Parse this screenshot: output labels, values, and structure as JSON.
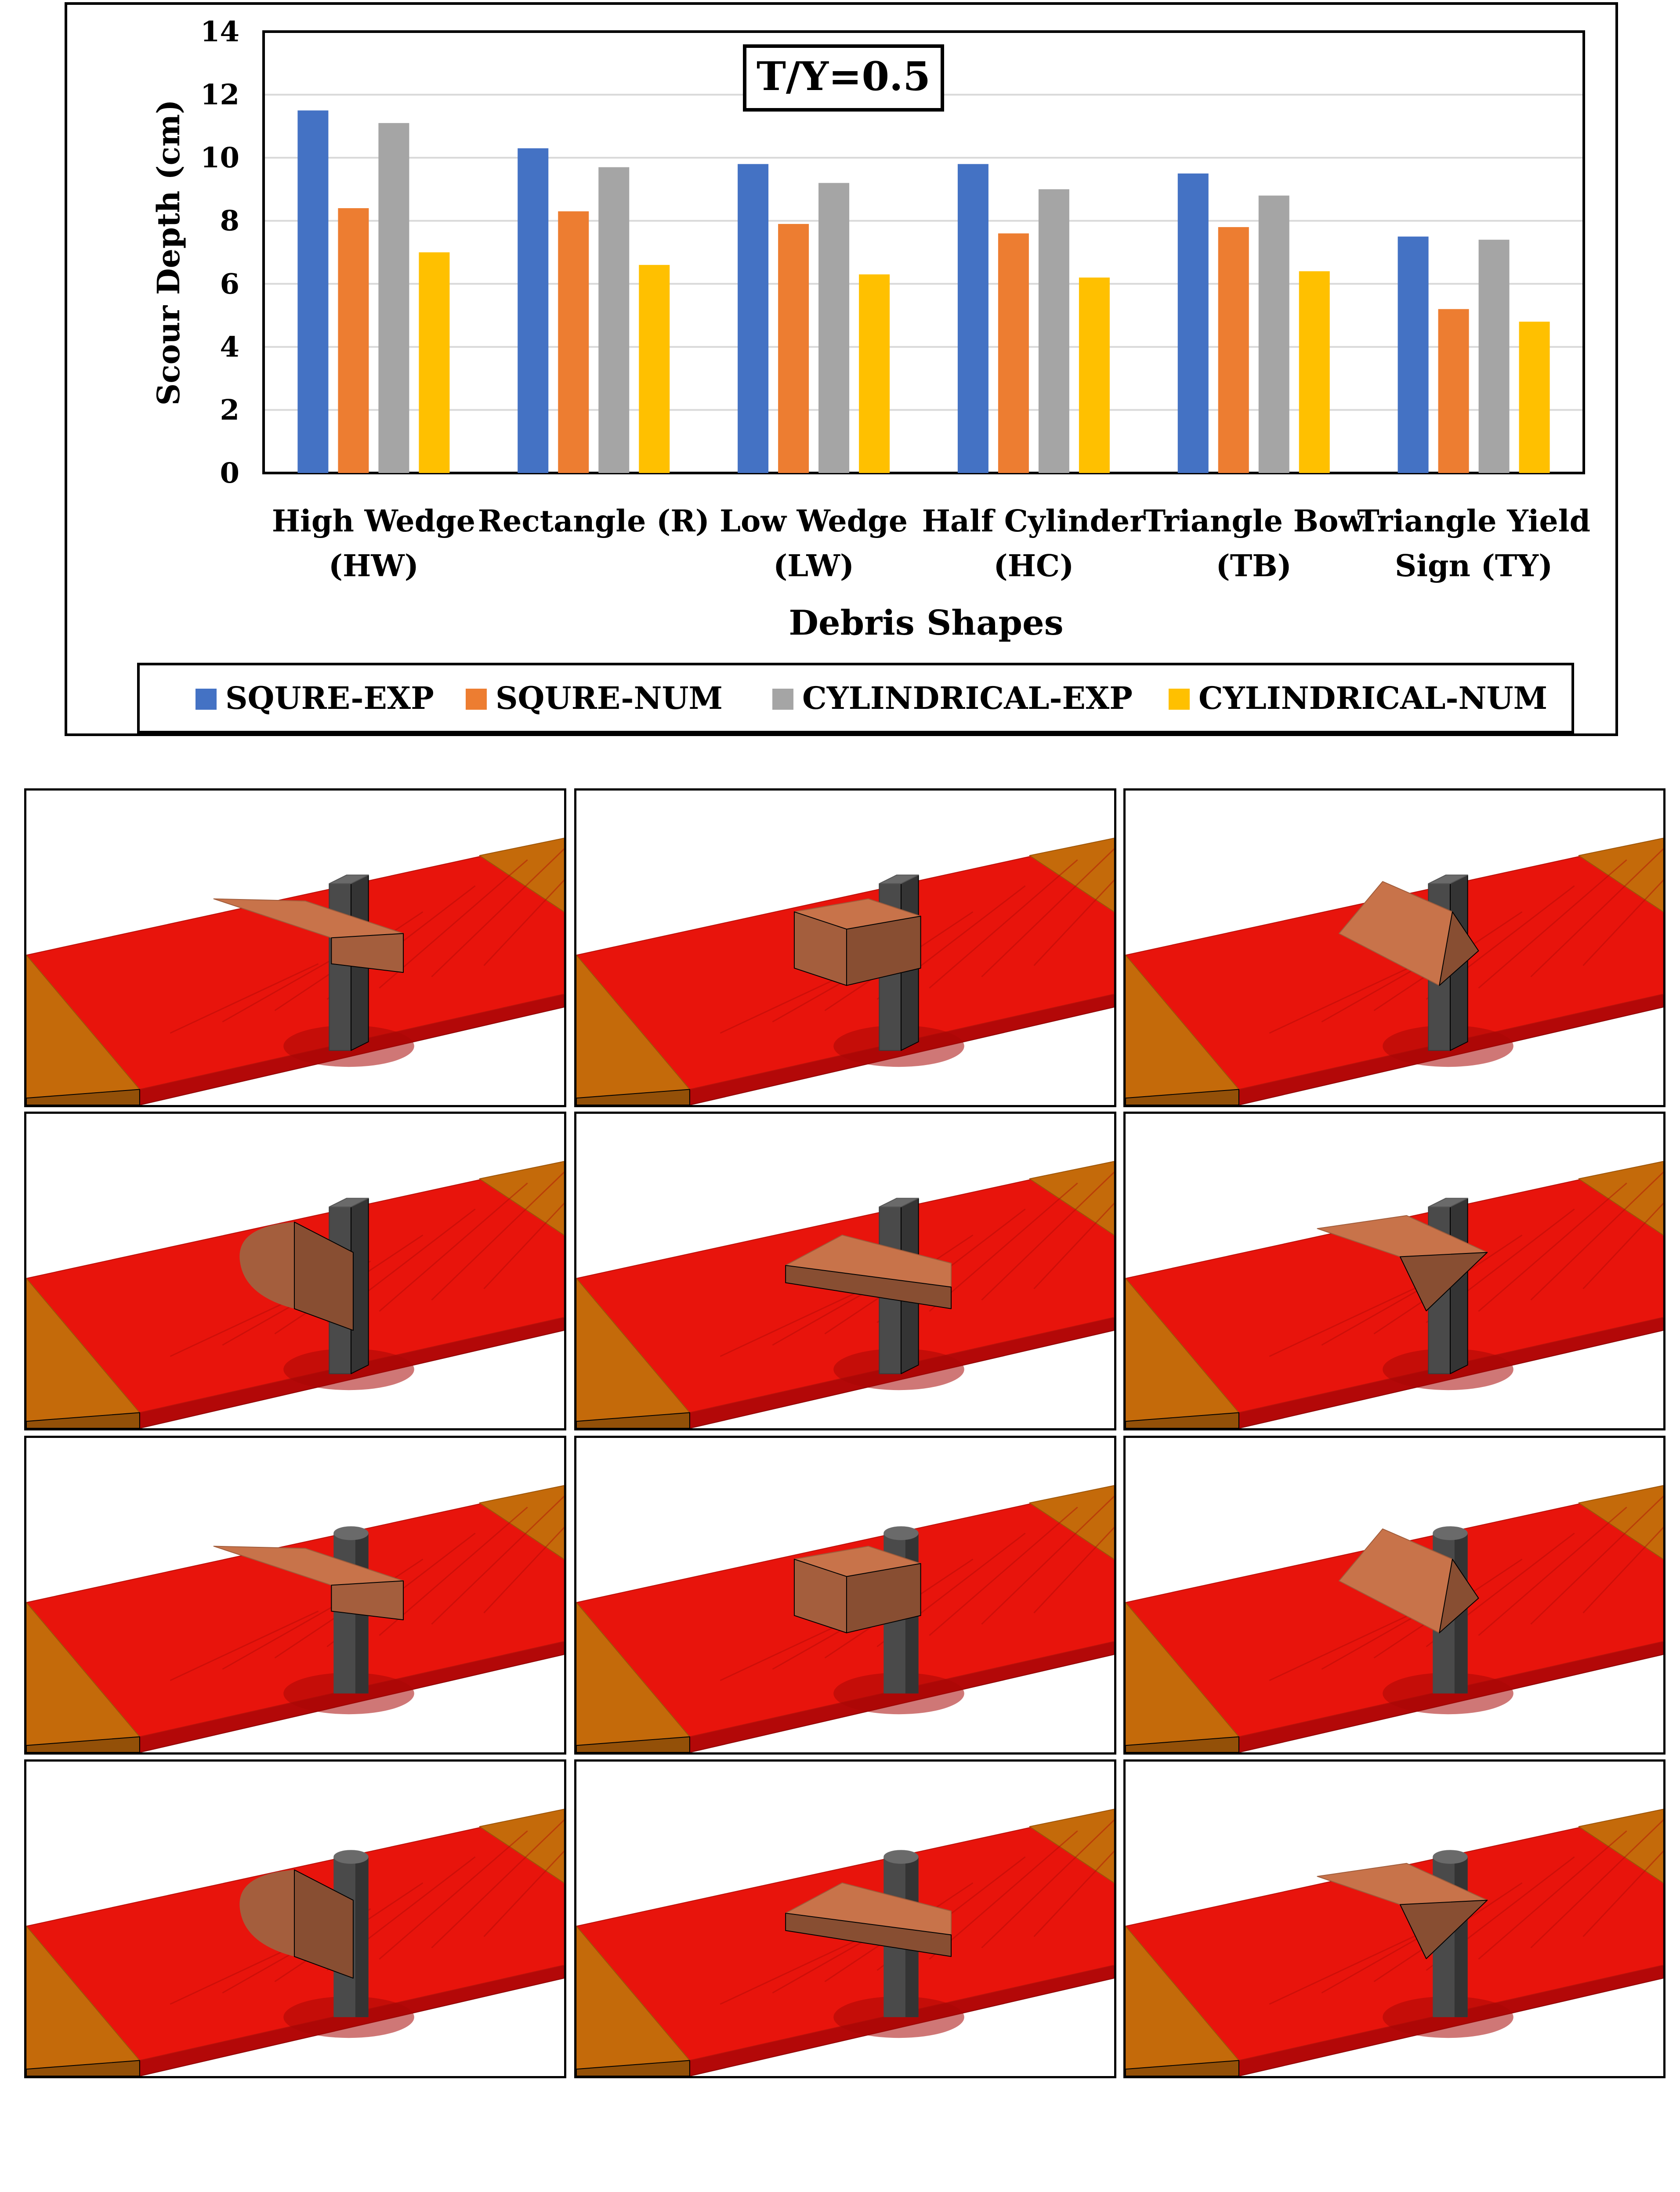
{
  "chart_data": {
    "type": "bar",
    "title": "T/Y=0.5",
    "xlabel": "Debris Shapes",
    "ylabel": "Scour Depth (cm)",
    "ylim": [
      0,
      14
    ],
    "yticks": [
      0,
      2,
      4,
      6,
      8,
      10,
      12,
      14
    ],
    "grid": true,
    "legend_position": "bottom",
    "categories": [
      [
        "High Wedge",
        "(HW)"
      ],
      [
        "Rectangle (R)",
        ""
      ],
      [
        "Low Wedge",
        "(LW)"
      ],
      [
        "Half Cylinder",
        "(HC)"
      ],
      [
        "Triangle Bow",
        "(TB)"
      ],
      [
        "Triangle Yield",
        "Sign (TY)"
      ]
    ],
    "series": [
      {
        "name": "SQURE-EXP",
        "color": "#4472c4",
        "values": [
          11.5,
          10.3,
          9.8,
          9.8,
          9.5,
          7.5
        ]
      },
      {
        "name": "SQURE-NUM",
        "color": "#ed7d31",
        "values": [
          8.4,
          8.3,
          7.9,
          7.6,
          7.8,
          5.2
        ]
      },
      {
        "name": "CYLINDRICAL-EXP",
        "color": "#a5a5a5",
        "values": [
          11.1,
          9.7,
          9.2,
          9.0,
          8.8,
          7.4
        ]
      },
      {
        "name": "CYLINDRICAL-NUM",
        "color": "#ffc000",
        "values": [
          7.0,
          6.6,
          6.3,
          6.2,
          6.4,
          4.8
        ]
      }
    ]
  },
  "simulation_panels": {
    "rows": [
      {
        "pier": "square",
        "shapes": [
          "high-wedge",
          "rectangle",
          "triangle-bow"
        ]
      },
      {
        "pier": "square",
        "shapes": [
          "half-cylinder",
          "low-wedge",
          "triangle-yield-sign"
        ]
      },
      {
        "pier": "cylindrical",
        "shapes": [
          "high-wedge",
          "rectangle",
          "triangle-bow"
        ]
      },
      {
        "pier": "cylindrical",
        "shapes": [
          "half-cylinder",
          "low-wedge",
          "triangle-yield-sign"
        ]
      }
    ],
    "colors": {
      "bed": "#e8140c",
      "bed_side": "#b30808",
      "apron": "#c46a0a",
      "debris": "#c8734a",
      "pier": "#4a4a4a"
    }
  }
}
